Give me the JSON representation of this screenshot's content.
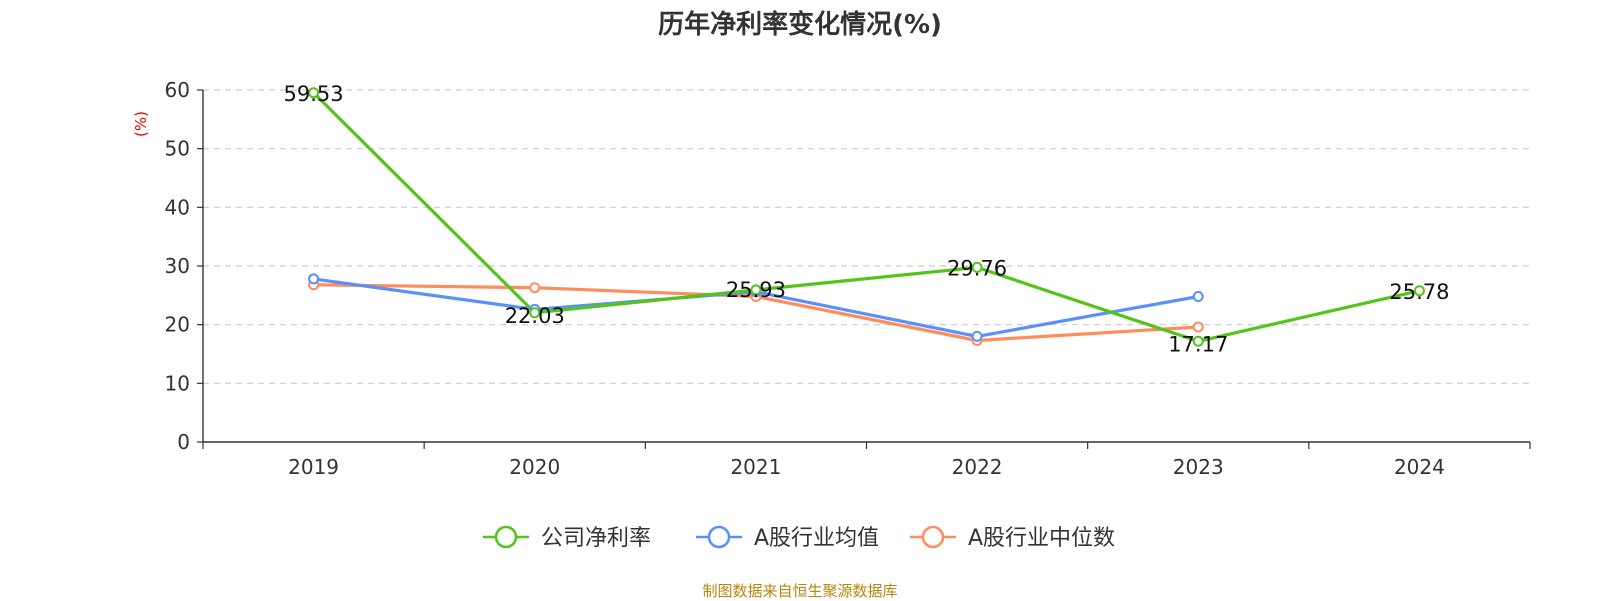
{
  "chart_data": {
    "type": "line",
    "title": "历年净利率变化情况(%)",
    "ylabel": "(%)",
    "xlabel": "",
    "categories": [
      "2019",
      "2020",
      "2021",
      "2022",
      "2023",
      "2024"
    ],
    "ylim": [
      0,
      60
    ],
    "yticks": [
      0,
      10,
      20,
      30,
      40,
      50,
      60
    ],
    "grid": true,
    "legend_position": "bottom",
    "series": [
      {
        "name": "公司净利率",
        "color": "#52c41a",
        "values": [
          59.53,
          22.03,
          25.93,
          29.76,
          17.17,
          25.78
        ],
        "labels": [
          "59.53",
          "22.03",
          "25.93",
          "29.76",
          "17.17",
          "25.78"
        ]
      },
      {
        "name": "A股行业均值",
        "color": "#5b8ff9",
        "values": [
          27.8,
          22.6,
          25.6,
          18.0,
          24.8,
          null
        ]
      },
      {
        "name": "A股行业中位数",
        "color": "#ff8c5a",
        "values": [
          26.8,
          26.3,
          24.8,
          17.3,
          19.6,
          null
        ]
      }
    ]
  },
  "footer": {
    "source": "制图数据来自恒生聚源数据库"
  }
}
